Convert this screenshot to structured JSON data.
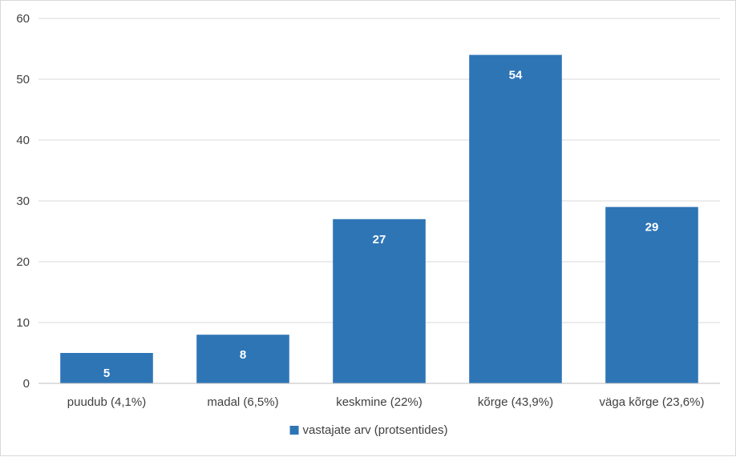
{
  "chart_data": {
    "type": "bar",
    "categories": [
      "puudub (4,1%)",
      "madal (6,5%)",
      "keskmine (22%)",
      "kõrge (43,9%)",
      "väga kõrge (23,6%)"
    ],
    "series": [
      {
        "name": "vastajate arv (protsentides)",
        "values": [
          5,
          8,
          27,
          54,
          29
        ],
        "color": "#2e75b6"
      }
    ],
    "data_labels": [
      "5",
      "8",
      "27",
      "54",
      "29"
    ],
    "ylim": [
      0,
      60
    ],
    "y_ticks": [
      0,
      10,
      20,
      30,
      40,
      50,
      60
    ],
    "grid": true,
    "gridline_color": "#d9d9d9",
    "legend_position": "bottom"
  }
}
